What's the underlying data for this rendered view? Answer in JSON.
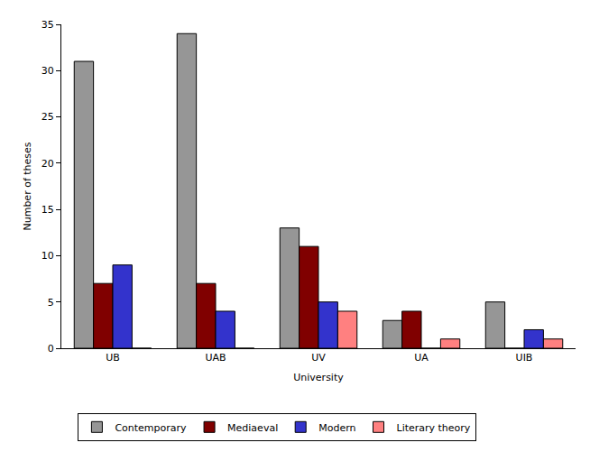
{
  "chart_data": {
    "type": "bar",
    "x_label": "University",
    "y_label": "Number of theses",
    "categories": [
      "UB",
      "UAB",
      "UV",
      "UA",
      "UIB"
    ],
    "series": [
      {
        "name": "Contemporary",
        "color": "#969696",
        "values": [
          31,
          34,
          13,
          3,
          5
        ]
      },
      {
        "name": "Mediaeval",
        "color": "#800000",
        "values": [
          7,
          7,
          11,
          4,
          0
        ]
      },
      {
        "name": "Modern",
        "color": "#3333cc",
        "values": [
          9,
          4,
          5,
          0,
          2
        ]
      },
      {
        "name": "Literary theory",
        "color": "#ff8080",
        "values": [
          0,
          0,
          4,
          1,
          1
        ]
      }
    ],
    "ylim": [
      0,
      35
    ],
    "yticks": [
      0,
      5,
      10,
      15,
      20,
      25,
      30,
      35
    ],
    "grid": false,
    "legend": "bottom"
  }
}
